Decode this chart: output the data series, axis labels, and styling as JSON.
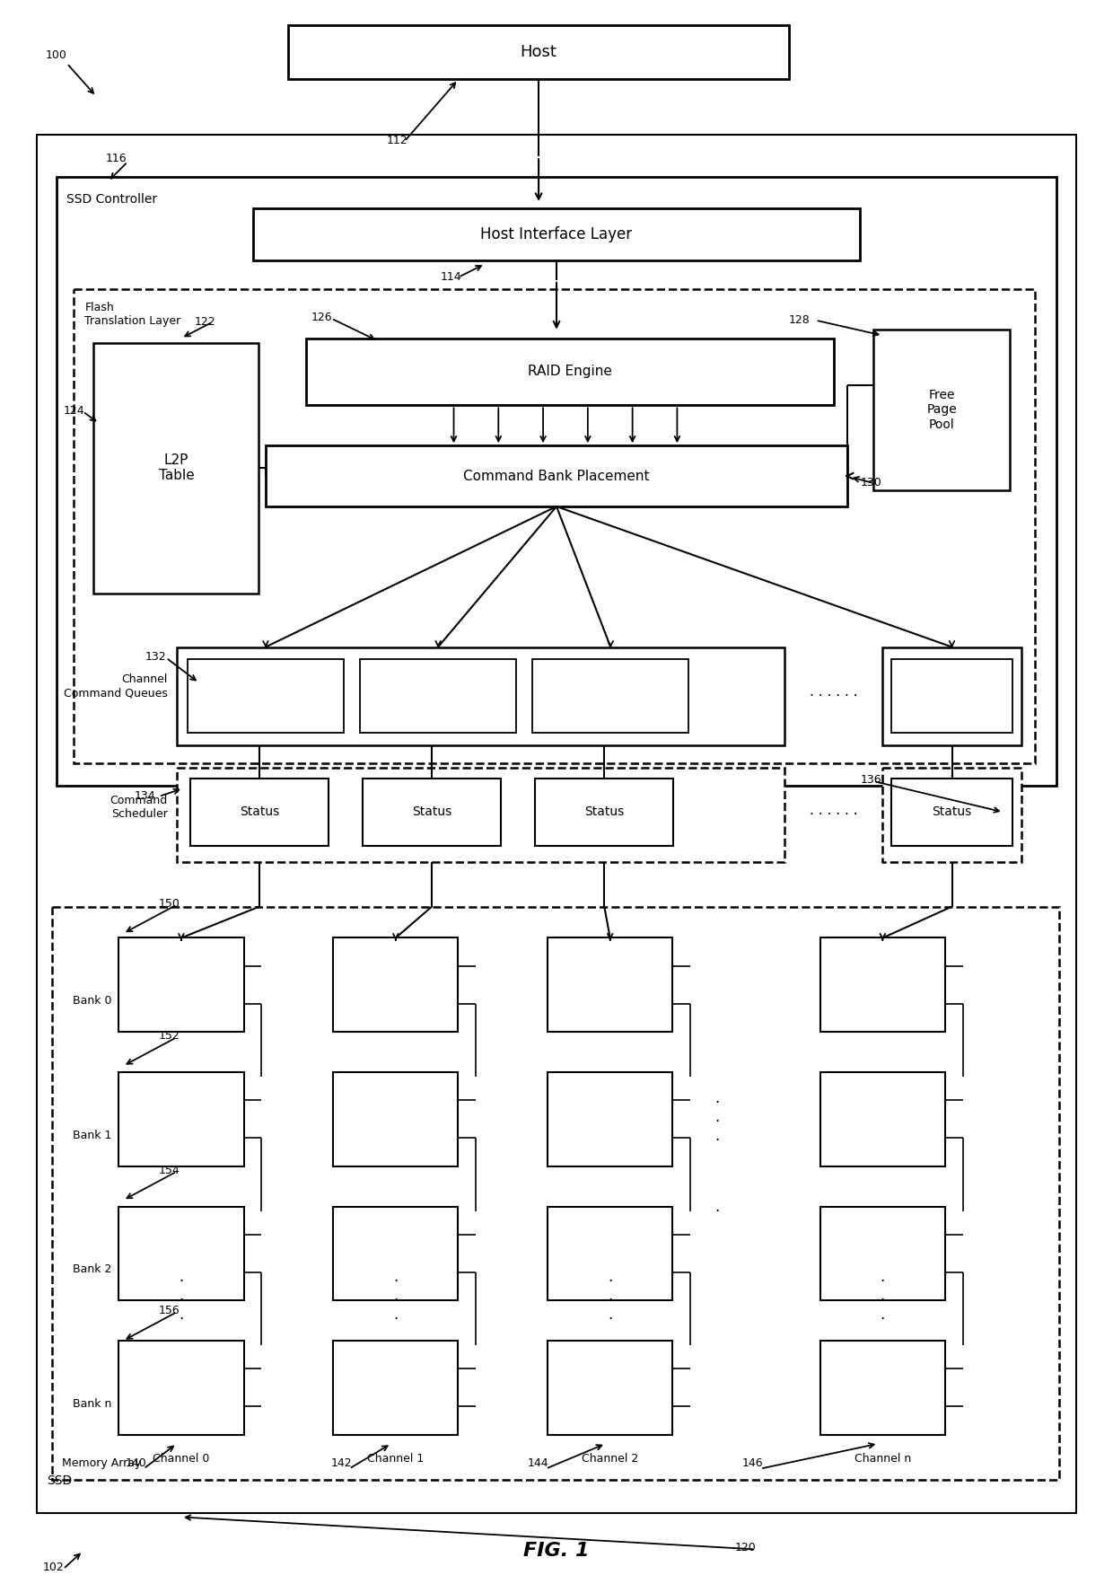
{
  "fig_label": "FIG. 1",
  "bg_color": "#ffffff",
  "box_edge_color": "#000000",
  "box_face_color": "#ffffff",
  "text_color": "#000000",
  "line_color": "#000000",
  "fig_width": 12.4,
  "fig_height": 17.64,
  "dpi": 100,
  "labels": {
    "host": "Host",
    "host_interface": "Host Interface Layer",
    "ssd_controller": "SSD Controller",
    "flash_translation": "Flash\nTranslation Layer",
    "l2p_table": "L2P\nTable",
    "raid_engine": "RAID Engine",
    "command_bank": "Command Bank Placement",
    "free_page_pool": "Free\nPage\nPool",
    "channel_command_queues": "Channel\nCommand Queues",
    "command_scheduler": "Command\nScheduler",
    "status": "Status",
    "memory_array": "Memory Array",
    "ssd": "SSD",
    "bank0": "Bank 0",
    "bank1": "Bank 1",
    "bank2": "Bank 2",
    "bankn": "Bank n",
    "channel0": "Channel 0",
    "channel1": "Channel 1",
    "channel2": "Channel 2",
    "channeln": "Channel n"
  }
}
